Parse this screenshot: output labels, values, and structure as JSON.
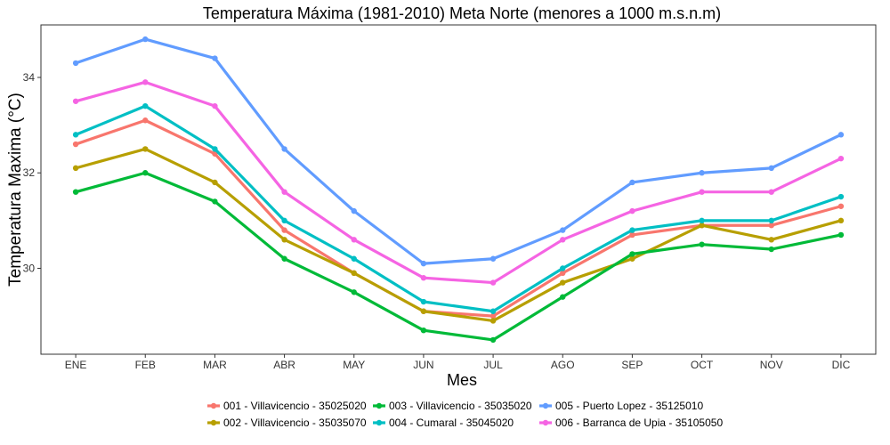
{
  "chart_data": {
    "type": "line",
    "title": "Temperatura Máxima (1981-2010) Meta Norte (menores a 1000 m.s.n.m)",
    "xlabel": "Mes",
    "ylabel": "Temperatura Maxima (°C)",
    "categories": [
      "ENE",
      "FEB",
      "MAR",
      "ABR",
      "MAY",
      "JUN",
      "JUL",
      "AGO",
      "SEP",
      "OCT",
      "NOV",
      "DIC"
    ],
    "ylim": [
      28.2,
      35.1
    ],
    "yticks": [
      30,
      32,
      34
    ],
    "grid": false,
    "legend_position": "bottom",
    "series": [
      {
        "name": "001 - Villavicencio - 35025020",
        "color": "#F8766D",
        "values": [
          32.6,
          33.1,
          32.4,
          30.8,
          29.9,
          29.1,
          29.0,
          29.9,
          30.7,
          30.9,
          30.9,
          31.3
        ]
      },
      {
        "name": "002 - Villavicencio - 35035070",
        "color": "#B79F00",
        "values": [
          32.1,
          32.5,
          31.8,
          30.6,
          29.9,
          29.1,
          28.9,
          29.7,
          30.2,
          30.9,
          30.6,
          31.0
        ]
      },
      {
        "name": "003 - Villavicencio - 35035020",
        "color": "#00BA38",
        "values": [
          31.6,
          32.0,
          31.4,
          30.2,
          29.5,
          28.7,
          28.5,
          29.4,
          30.3,
          30.5,
          30.4,
          30.7
        ]
      },
      {
        "name": "004 - Cumaral - 35045020",
        "color": "#00BFC4",
        "values": [
          32.8,
          33.4,
          32.5,
          31.0,
          30.2,
          29.3,
          29.1,
          30.0,
          30.8,
          31.0,
          31.0,
          31.5
        ]
      },
      {
        "name": "005 - Puerto Lopez - 35125010",
        "color": "#619CFF",
        "values": [
          34.3,
          34.8,
          34.4,
          32.5,
          31.2,
          30.1,
          30.2,
          30.8,
          31.8,
          32.0,
          32.1,
          32.8
        ]
      },
      {
        "name": "006 - Barranca de Upia - 35105050",
        "color": "#F564E3",
        "values": [
          33.5,
          33.9,
          33.4,
          31.6,
          30.6,
          29.8,
          29.7,
          30.6,
          31.2,
          31.6,
          31.6,
          32.3
        ]
      }
    ]
  }
}
